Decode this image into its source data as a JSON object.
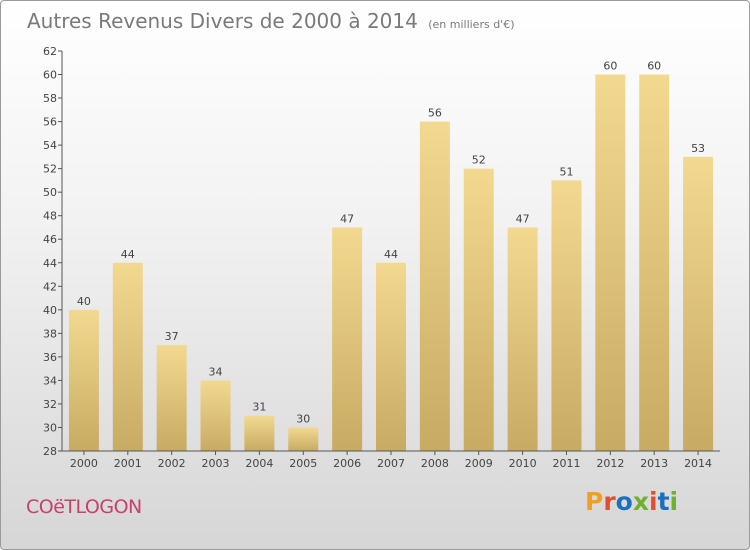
{
  "title": "Autres Revenus Divers de 2000 à 2014",
  "subtitle": "(en milliers d'€)",
  "commune": "COëTLOGON",
  "logo": {
    "text": "Proxiti",
    "colors": [
      "#f0a020",
      "#e05030",
      "#1a70c0",
      "#70b030",
      "#e05030",
      "#1a70c0",
      "#70b030"
    ]
  },
  "colors": {
    "bar_top": "#f3d990",
    "bar_bottom": "#c8ab63",
    "axis": "#555555",
    "grid": "#cccccc"
  },
  "chart_data": {
    "type": "bar",
    "title": "Autres Revenus Divers de 2000 à 2014",
    "subtitle": "(en milliers d'€)",
    "categories": [
      "2000",
      "2001",
      "2002",
      "2003",
      "2004",
      "2005",
      "2006",
      "2007",
      "2008",
      "2009",
      "2010",
      "2011",
      "2012",
      "2013",
      "2014"
    ],
    "values": [
      40,
      44,
      37,
      34,
      31,
      30,
      47,
      44,
      56,
      52,
      47,
      51,
      60,
      60,
      53
    ],
    "ylim": [
      28,
      62
    ],
    "yticks": [
      28,
      30,
      32,
      34,
      36,
      38,
      40,
      42,
      44,
      46,
      48,
      50,
      52,
      54,
      56,
      58,
      60,
      62
    ],
    "grid": false,
    "xlabel": "",
    "ylabel": ""
  }
}
